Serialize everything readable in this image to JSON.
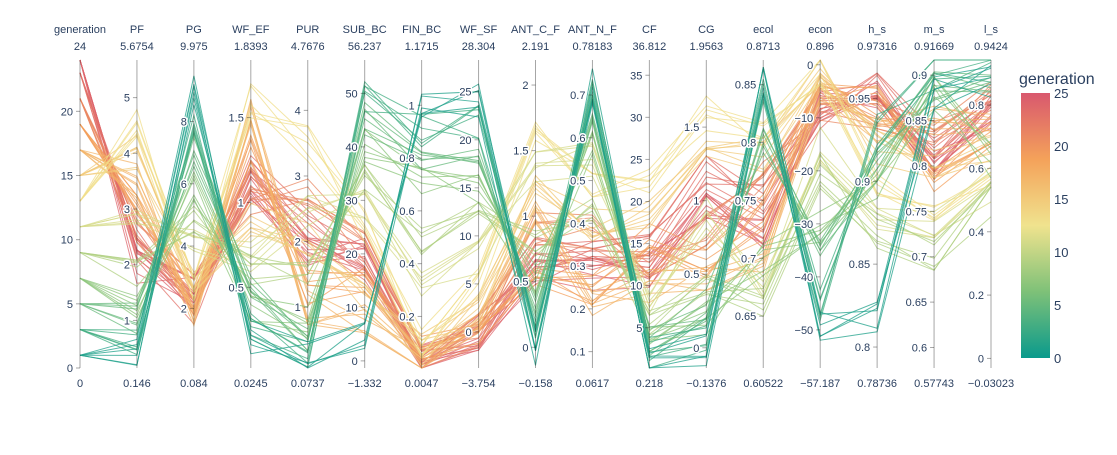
{
  "chart_data": {
    "type": "parcoords",
    "colorbar": {
      "title": "generation",
      "min": 0,
      "max": 25,
      "ticks": [
        0,
        5,
        10,
        15,
        20,
        25
      ],
      "colorscale": [
        "#009b9e",
        "#42b7b9",
        "#a7d3d4",
        "#f1f1f1",
        "#e4c1d9",
        "#d691c1",
        "#c75dab"
      ],
      "display_colorscale": [
        "#0a9a8c",
        "#7ec178",
        "#f0e38e",
        "#f4a25a",
        "#d9586e"
      ]
    },
    "dimensions": [
      {
        "label": "generation",
        "max_label": "24",
        "min_label": "0",
        "range": [
          0,
          24
        ],
        "ticks": [
          0,
          5,
          10,
          15,
          20
        ]
      },
      {
        "label": "PF",
        "max_label": "5.6754",
        "min_label": "0.146",
        "range": [
          0.146,
          5.6754
        ],
        "ticks": [
          1,
          2,
          3,
          4,
          5
        ]
      },
      {
        "label": "PG",
        "max_label": "9.975",
        "min_label": "0.084",
        "range": [
          0.084,
          9.975
        ],
        "ticks": [
          2,
          4,
          6,
          8
        ]
      },
      {
        "label": "WF_EF",
        "max_label": "1.8393",
        "min_label": "0.0245",
        "range": [
          0.0245,
          1.8393
        ],
        "ticks": [
          0.5,
          1,
          1.5
        ]
      },
      {
        "label": "PUR",
        "max_label": "4.7676",
        "min_label": "0.0737",
        "range": [
          0.0737,
          4.7676
        ],
        "ticks": [
          1,
          2,
          3,
          4
        ]
      },
      {
        "label": "SUB_BC",
        "max_label": "56.237",
        "min_label": "−1.332",
        "range": [
          -1.332,
          56.237
        ],
        "ticks": [
          0,
          10,
          20,
          30,
          40,
          50
        ]
      },
      {
        "label": "FIN_BC",
        "max_label": "1.1715",
        "min_label": "0.0047",
        "range": [
          0.0047,
          1.1715
        ],
        "ticks": [
          0.2,
          0.4,
          0.6,
          0.8,
          1
        ]
      },
      {
        "label": "WF_SF",
        "max_label": "28.304",
        "min_label": "−3.754",
        "range": [
          -3.754,
          28.304
        ],
        "ticks": [
          0,
          5,
          10,
          15,
          20,
          25
        ]
      },
      {
        "label": "ANT_C_F",
        "max_label": "2.191",
        "min_label": "−0.158",
        "range": [
          -0.158,
          2.191
        ],
        "ticks": [
          0,
          0.5,
          1,
          1.5,
          2
        ]
      },
      {
        "label": "ANT_N_F",
        "max_label": "0.78183",
        "min_label": "0.0617",
        "range": [
          0.0617,
          0.78183
        ],
        "ticks": [
          0.1,
          0.2,
          0.3,
          0.4,
          0.5,
          0.6,
          0.7
        ]
      },
      {
        "label": "CF",
        "max_label": "36.812",
        "min_label": "0.218",
        "range": [
          0.218,
          36.812
        ],
        "ticks": [
          5,
          10,
          15,
          20,
          25,
          30,
          35
        ]
      },
      {
        "label": "CG",
        "max_label": "1.9563",
        "min_label": "−0.1376",
        "range": [
          -0.1376,
          1.9563
        ],
        "ticks": [
          0,
          0.5,
          1,
          1.5
        ]
      },
      {
        "label": "ecol",
        "max_label": "0.8713",
        "min_label": "0.60522",
        "range": [
          0.60522,
          0.8713
        ],
        "ticks": [
          0.65,
          0.7,
          0.75,
          0.8,
          0.85
        ]
      },
      {
        "label": "econ",
        "max_label": "0.896",
        "min_label": "−57.187",
        "range": [
          -57.187,
          0.896
        ],
        "ticks": [
          -50,
          -40,
          -30,
          -20,
          -10,
          0
        ]
      },
      {
        "label": "h_s",
        "max_label": "0.97316",
        "min_label": "0.78736",
        "range": [
          0.78736,
          0.97316
        ],
        "ticks": [
          0.8,
          0.85,
          0.9,
          0.95
        ]
      },
      {
        "label": "m_s",
        "max_label": "0.91669",
        "min_label": "0.57743",
        "range": [
          0.57743,
          0.91669
        ],
        "ticks": [
          0.6,
          0.65,
          0.7,
          0.75,
          0.8,
          0.85,
          0.9
        ]
      },
      {
        "label": "l_s",
        "max_label": "0.9424",
        "min_label": "−0.03023",
        "range": [
          -0.03023,
          0.9424
        ],
        "ticks": [
          0,
          0.2,
          0.4,
          0.6,
          0.8
        ]
      }
    ],
    "groups": [
      {
        "generation": 24,
        "values": [
          24,
          2.0,
          2.5,
          1.1,
          1.8,
          20,
          0.03,
          0,
          0.6,
          0.28,
          12,
          1.0,
          0.72,
          -8,
          0.95,
          0.8,
          0.78
        ],
        "count": 10
      },
      {
        "generation": 23,
        "values": [
          23,
          2.3,
          2.0,
          1.2,
          2.2,
          18,
          0.05,
          0,
          0.7,
          0.33,
          14,
          1.2,
          0.75,
          -10,
          0.96,
          0.82,
          0.8
        ],
        "count": 8
      },
      {
        "generation": 21,
        "values": [
          21,
          2.6,
          2.6,
          1.0,
          2.8,
          21,
          0.04,
          0,
          0.9,
          0.38,
          13,
          0.8,
          0.77,
          -7,
          0.94,
          0.83,
          0.84
        ],
        "count": 7
      },
      {
        "generation": 19,
        "values": [
          19,
          3.0,
          2.2,
          1.3,
          1.3,
          14,
          0.06,
          0,
          0.5,
          0.25,
          16,
          0.6,
          0.74,
          -5,
          0.95,
          0.78,
          0.7
        ],
        "count": 7
      },
      {
        "generation": 17,
        "values": [
          17,
          3.5,
          1.8,
          1.5,
          1.0,
          8,
          0.03,
          0,
          1.0,
          0.22,
          10,
          0.5,
          0.7,
          -4,
          0.93,
          0.85,
          0.75
        ],
        "count": 7
      },
      {
        "generation": 15,
        "values": [
          15,
          4.0,
          3.0,
          0.9,
          2.0,
          12,
          0.08,
          2,
          1.2,
          0.4,
          18,
          1.3,
          0.79,
          -2,
          0.92,
          0.8,
          0.68
        ],
        "count": 7
      },
      {
        "generation": 13,
        "values": [
          13,
          4.5,
          2.8,
          1.6,
          3.5,
          25,
          0.1,
          5,
          1.6,
          0.5,
          22,
          1.6,
          0.81,
          -1,
          0.9,
          0.76,
          0.6
        ],
        "count": 6
      },
      {
        "generation": 11,
        "values": [
          11,
          2.8,
          4.2,
          0.7,
          2.5,
          30,
          0.3,
          8,
          1.4,
          0.55,
          8,
          0.9,
          0.68,
          -15,
          0.88,
          0.74,
          0.55
        ],
        "count": 6
      },
      {
        "generation": 9,
        "values": [
          9,
          1.8,
          5.0,
          0.6,
          1.5,
          35,
          0.5,
          12,
          0.8,
          0.45,
          6,
          0.4,
          0.66,
          -20,
          0.87,
          0.7,
          0.5
        ],
        "count": 6
      },
      {
        "generation": 7,
        "values": [
          7,
          1.2,
          6.0,
          0.4,
          0.8,
          40,
          0.7,
          15,
          0.5,
          0.6,
          4,
          0.2,
          0.7,
          -30,
          0.9,
          0.88,
          0.62
        ],
        "count": 6
      },
      {
        "generation": 5,
        "values": [
          5,
          1.0,
          7.0,
          0.5,
          0.5,
          45,
          0.8,
          18,
          0.3,
          0.65,
          3,
          0.3,
          0.8,
          -35,
          0.91,
          0.89,
          0.85
        ],
        "count": 6
      },
      {
        "generation": 3,
        "values": [
          3,
          0.6,
          8.0,
          0.3,
          0.3,
          50,
          0.9,
          22,
          0.1,
          0.7,
          2,
          0.1,
          0.84,
          -45,
          0.93,
          0.9,
          0.9
        ],
        "count": 6
      },
      {
        "generation": 1,
        "values": [
          1,
          0.4,
          9.0,
          0.2,
          0.2,
          5,
          1.0,
          24,
          0.0,
          0.72,
          1,
          0.0,
          0.85,
          -50,
          0.82,
          0.88,
          0.88
        ],
        "count": 6
      }
    ]
  }
}
